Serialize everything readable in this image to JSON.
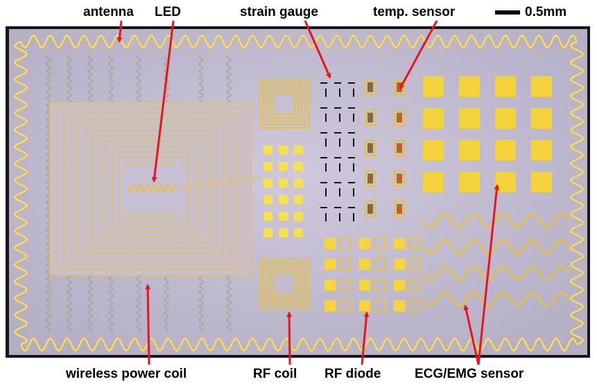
{
  "labels": {
    "antenna": "antenna",
    "led": "LED",
    "strain_gauge": "strain gauge",
    "temp_sensor": "temp. sensor",
    "scale": "0.5mm",
    "wireless_power_coil": "wireless power coil",
    "rf_coil": "RF coil",
    "rf_diode": "RF diode",
    "ecg_emg_sensor": "ECG/EMG sensor"
  }
}
